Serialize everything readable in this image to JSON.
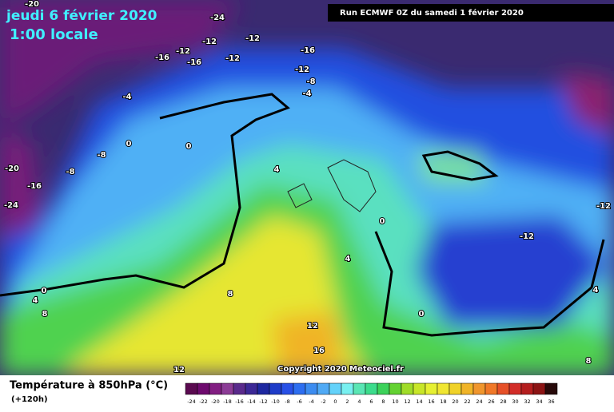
{
  "header": {
    "date": "jeudi 6 février 2020",
    "time": "1:00 locale",
    "run": "Run ECMWF 0Z du samedi 1 février 2020",
    "copyright": "Copyright 2020 Meteociel.fr"
  },
  "legend": {
    "title": "Température à 850hPa (°C)",
    "lead": "(+120h)",
    "ticks": [
      -24,
      -22,
      -20,
      -18,
      -16,
      -14,
      -12,
      -10,
      -8,
      -6,
      -4,
      -2,
      0,
      2,
      4,
      6,
      8,
      10,
      12,
      14,
      16,
      18,
      20,
      22,
      24,
      26,
      28,
      30,
      32,
      34,
      36
    ],
    "colors": [
      "#5a0a50",
      "#6e0a6e",
      "#821e82",
      "#8c3c96",
      "#5a2a8c",
      "#3c2896",
      "#1e28a0",
      "#1e3cc8",
      "#2850e6",
      "#2d6ef0",
      "#3c8cf0",
      "#50aaf5",
      "#64d2fa",
      "#78f0f0",
      "#5ae6b4",
      "#3cdc8c",
      "#3cd25a",
      "#64d232",
      "#a0dc28",
      "#c8e628",
      "#e6f032",
      "#f0e632",
      "#f0d228",
      "#f0b428",
      "#f0962d",
      "#f07828",
      "#e65028",
      "#d22d28",
      "#b41e1e",
      "#8c1414",
      "#280a0a"
    ]
  },
  "map_labels": [
    -20,
    -24,
    -12,
    -12,
    -12,
    -16,
    -16,
    -12,
    -16,
    -12,
    -8,
    -4,
    -4,
    0,
    0,
    -8,
    -20,
    -8,
    -16,
    -24,
    4,
    0,
    -12,
    -12,
    4,
    0,
    4,
    8,
    8,
    0,
    12,
    16,
    12,
    4,
    8
  ]
}
